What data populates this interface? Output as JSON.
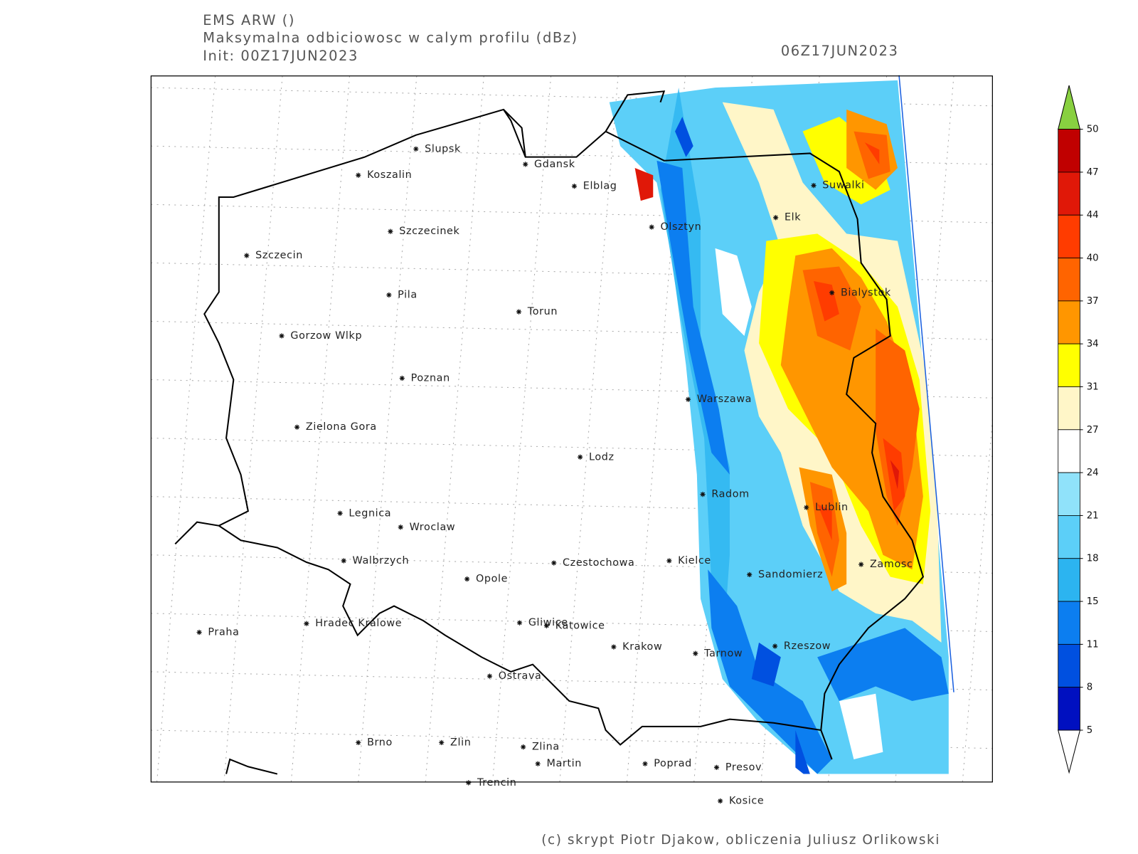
{
  "header": {
    "model": "EMS ARW ()",
    "field": "Maksymalna odbiciowosc w calym profilu (dBz)",
    "init": "Init: 00Z17JUN2023",
    "valid_time": "06Z17JUN2023"
  },
  "cities": [
    "Slupsk",
    "Koszalin",
    "Gdansk",
    "Elblag",
    "Szczecinek",
    "Szczecin",
    "Suwalki",
    "Elk",
    "Olsztyn",
    "Pila",
    "Torun",
    "Bialystok",
    "Gorzow Wlkp",
    "Poznan",
    "Warszawa",
    "Zielona Gora",
    "Lodz",
    "Radom",
    "Lublin",
    "Legnica",
    "Wroclaw",
    "Walbrzych",
    "Czestochowa",
    "Kielce",
    "Zamosc",
    "Sandomierz",
    "Opole",
    "Praha",
    "Hradec Kralowe",
    "Gliwice",
    "Katowice",
    "Krakow",
    "Tarnow",
    "Rzeszow",
    "Ostrava",
    "Brno",
    "Zlin",
    "Zlina",
    "Martin",
    "Poprad",
    "Presov",
    "Trencin",
    "Kosice"
  ],
  "colorbar": {
    "levels": [
      50,
      47,
      44,
      40,
      37,
      34,
      31,
      27,
      24,
      21,
      18,
      15,
      11,
      8,
      5
    ],
    "colors": [
      "#c00000",
      "#e01808",
      "#ff3c00",
      "#ff6400",
      "#ff9600",
      "#ffff00",
      "#fff6c8",
      "#ffffff",
      "#90e2fa",
      "#5ccff8",
      "#2cb4f0",
      "#0c7ef0",
      "#0050e0",
      "#0010c0"
    ],
    "over_color": "#88d040",
    "under_color": "#ffffff"
  },
  "credit": "(c) skrypt Piotr Djakow, obliczenia Juliusz Orlikowski"
}
